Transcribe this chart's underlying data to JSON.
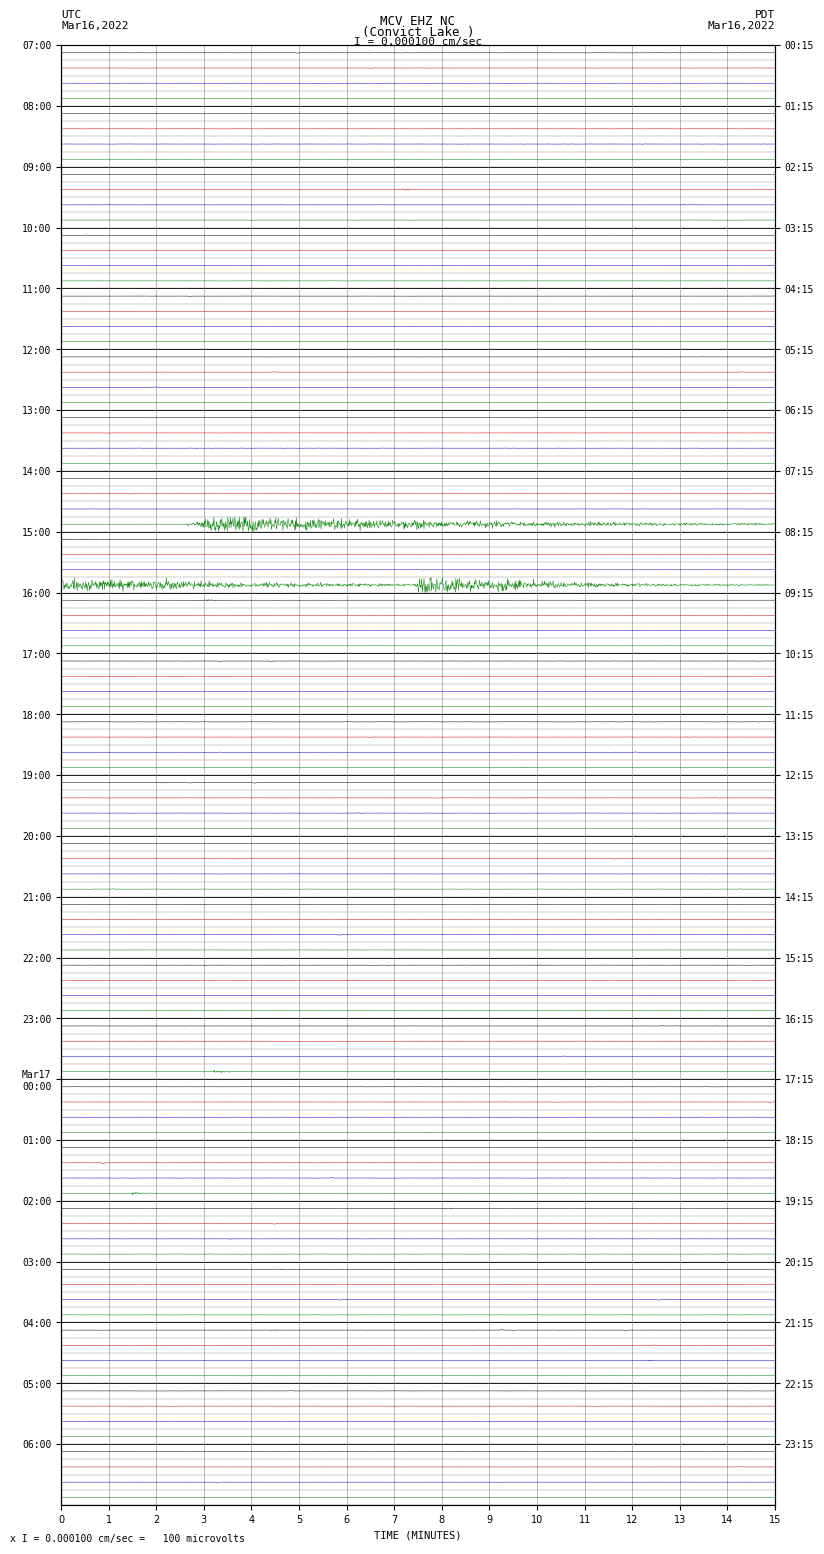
{
  "title_line1": "MCV EHZ NC",
  "title_line2": "(Convict Lake )",
  "scale_text": "I = 0.000100 cm/sec",
  "bottom_scale_text": "x I = 0.000100 cm/sec =   100 microvolts",
  "utc_label": "UTC",
  "utc_date": "Mar16,2022",
  "pdt_label": "PDT",
  "pdt_date": "Mar16,2022",
  "xlabel": "TIME (MINUTES)",
  "left_times": [
    "07:00",
    "08:00",
    "09:00",
    "10:00",
    "11:00",
    "12:00",
    "13:00",
    "14:00",
    "15:00",
    "16:00",
    "17:00",
    "18:00",
    "19:00",
    "20:00",
    "21:00",
    "22:00",
    "23:00",
    "Mar17\n00:00",
    "01:00",
    "02:00",
    "03:00",
    "04:00",
    "05:00",
    "06:00"
  ],
  "right_times": [
    "00:15",
    "01:15",
    "02:15",
    "03:15",
    "04:15",
    "05:15",
    "06:15",
    "07:15",
    "08:15",
    "09:15",
    "10:15",
    "11:15",
    "12:15",
    "13:15",
    "14:15",
    "15:15",
    "16:15",
    "17:15",
    "18:15",
    "19:15",
    "20:15",
    "21:15",
    "22:15",
    "23:15"
  ],
  "n_hours": 24,
  "traces_per_hour": 4,
  "minutes_per_row": 15,
  "bg_color": "#ffffff",
  "trace_colors": [
    "#000000",
    "#cc0000",
    "#0000cc",
    "#008000"
  ],
  "grid_color": "#888888",
  "tick_fontsize": 7,
  "label_fontsize": 7.5
}
